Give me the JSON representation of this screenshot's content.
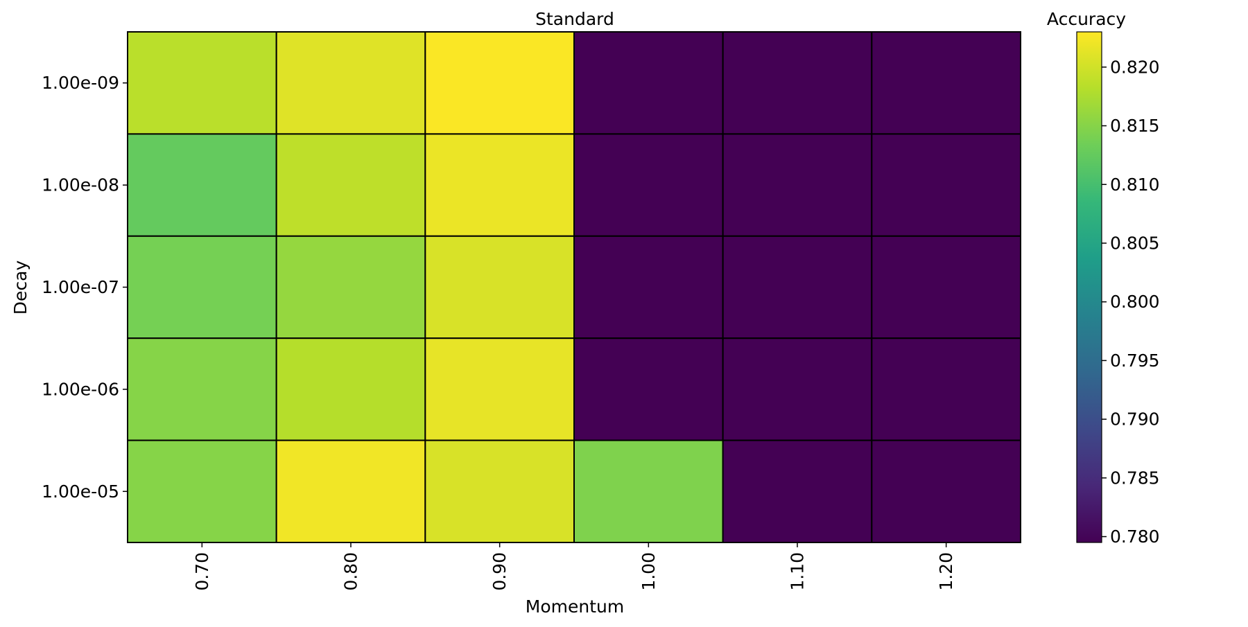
{
  "chart_data": {
    "type": "heatmap",
    "title": "Standard",
    "xlabel": "Momentum",
    "ylabel": "Decay",
    "x_categories": [
      "0.70",
      "0.80",
      "0.90",
      "1.00",
      "1.10",
      "1.20"
    ],
    "y_categories": [
      "1.00e-09",
      "1.00e-08",
      "1.00e-07",
      "1.00e-06",
      "1.00e-05"
    ],
    "values": [
      [
        0.8185,
        0.821,
        0.8228,
        0.7795,
        0.7795,
        0.7795
      ],
      [
        0.8125,
        0.8188,
        0.8218,
        0.7795,
        0.7795,
        0.7795
      ],
      [
        0.8138,
        0.816,
        0.8205,
        0.7795,
        0.7795,
        0.7795
      ],
      [
        0.815,
        0.8182,
        0.8215,
        0.7795,
        0.7795,
        0.7795
      ],
      [
        0.815,
        0.8222,
        0.8205,
        0.8145,
        0.7795,
        0.7795
      ]
    ],
    "colorbar": {
      "label": "Accuracy",
      "min": 0.7795,
      "max": 0.823,
      "ticks": [
        "0.780",
        "0.785",
        "0.790",
        "0.795",
        "0.800",
        "0.805",
        "0.810",
        "0.815",
        "0.820"
      ],
      "tick_values": [
        0.78,
        0.785,
        0.79,
        0.795,
        0.8,
        0.805,
        0.81,
        0.815,
        0.82
      ]
    },
    "colormap": "viridis",
    "cell_border_color": "#000000",
    "grid": false
  }
}
